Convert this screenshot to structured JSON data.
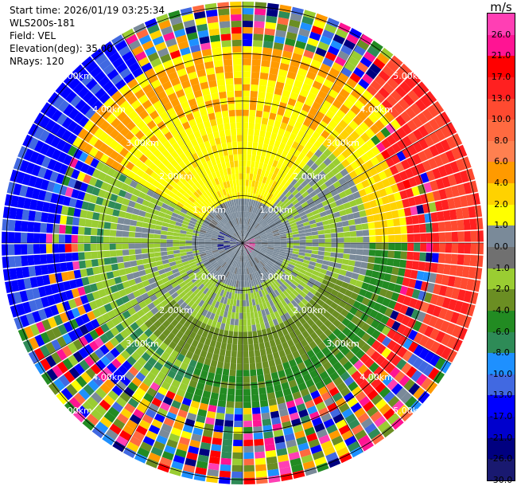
{
  "header": {
    "start_time": "Start time: 2026/01/19 03:25:34",
    "instrument": "WLS200s-181",
    "field": "Field: VEL",
    "elevation": "Elevation(deg): 35.00",
    "nrays": "NRays: 120"
  },
  "colorbar": {
    "unit": "m/s",
    "ticks": [
      "26.0",
      "21.0",
      "17.0",
      "13.0",
      "10.0",
      "8.0",
      "6.0",
      "4.0",
      "2.0",
      "1.0",
      "0.0",
      "-1.0",
      "-2.0",
      "-4.0",
      "-6.0",
      "-8.0",
      "-10.0",
      "-13.0",
      "-17.0",
      "-21.0",
      "-26.0",
      "-30.0"
    ],
    "colors": [
      "#ff3fb4",
      "#ff1493",
      "#ff0000",
      "#ff2020",
      "#ff4a30",
      "#ff6a40",
      "#ff8050",
      "#ff9a00",
      "#ffd200",
      "#ffff00",
      "#7a8a99",
      "#707070",
      "#9acd32",
      "#6b8e23",
      "#228b22",
      "#2e8b57",
      "#1e90ff",
      "#4169e1",
      "#0000ff",
      "#0000cd",
      "#000080",
      "#191970"
    ]
  },
  "chart_data": {
    "type": "ppi",
    "field": "VEL",
    "unit": "m/s",
    "range_rings_km": [
      1,
      2,
      3,
      4,
      5
    ],
    "ring_labels": [
      "1.00km",
      "2.00km",
      "3.00km",
      "4.00km",
      "5.00km"
    ],
    "max_range_km": 5.1,
    "nrays": 120,
    "elevation_deg": 35.0,
    "color_levels": [
      -30,
      -26,
      -21,
      -17,
      -13,
      -10,
      -8,
      -6,
      -4,
      -2,
      -1,
      0,
      1,
      2,
      4,
      6,
      8,
      10,
      13,
      17,
      21,
      26
    ]
  }
}
